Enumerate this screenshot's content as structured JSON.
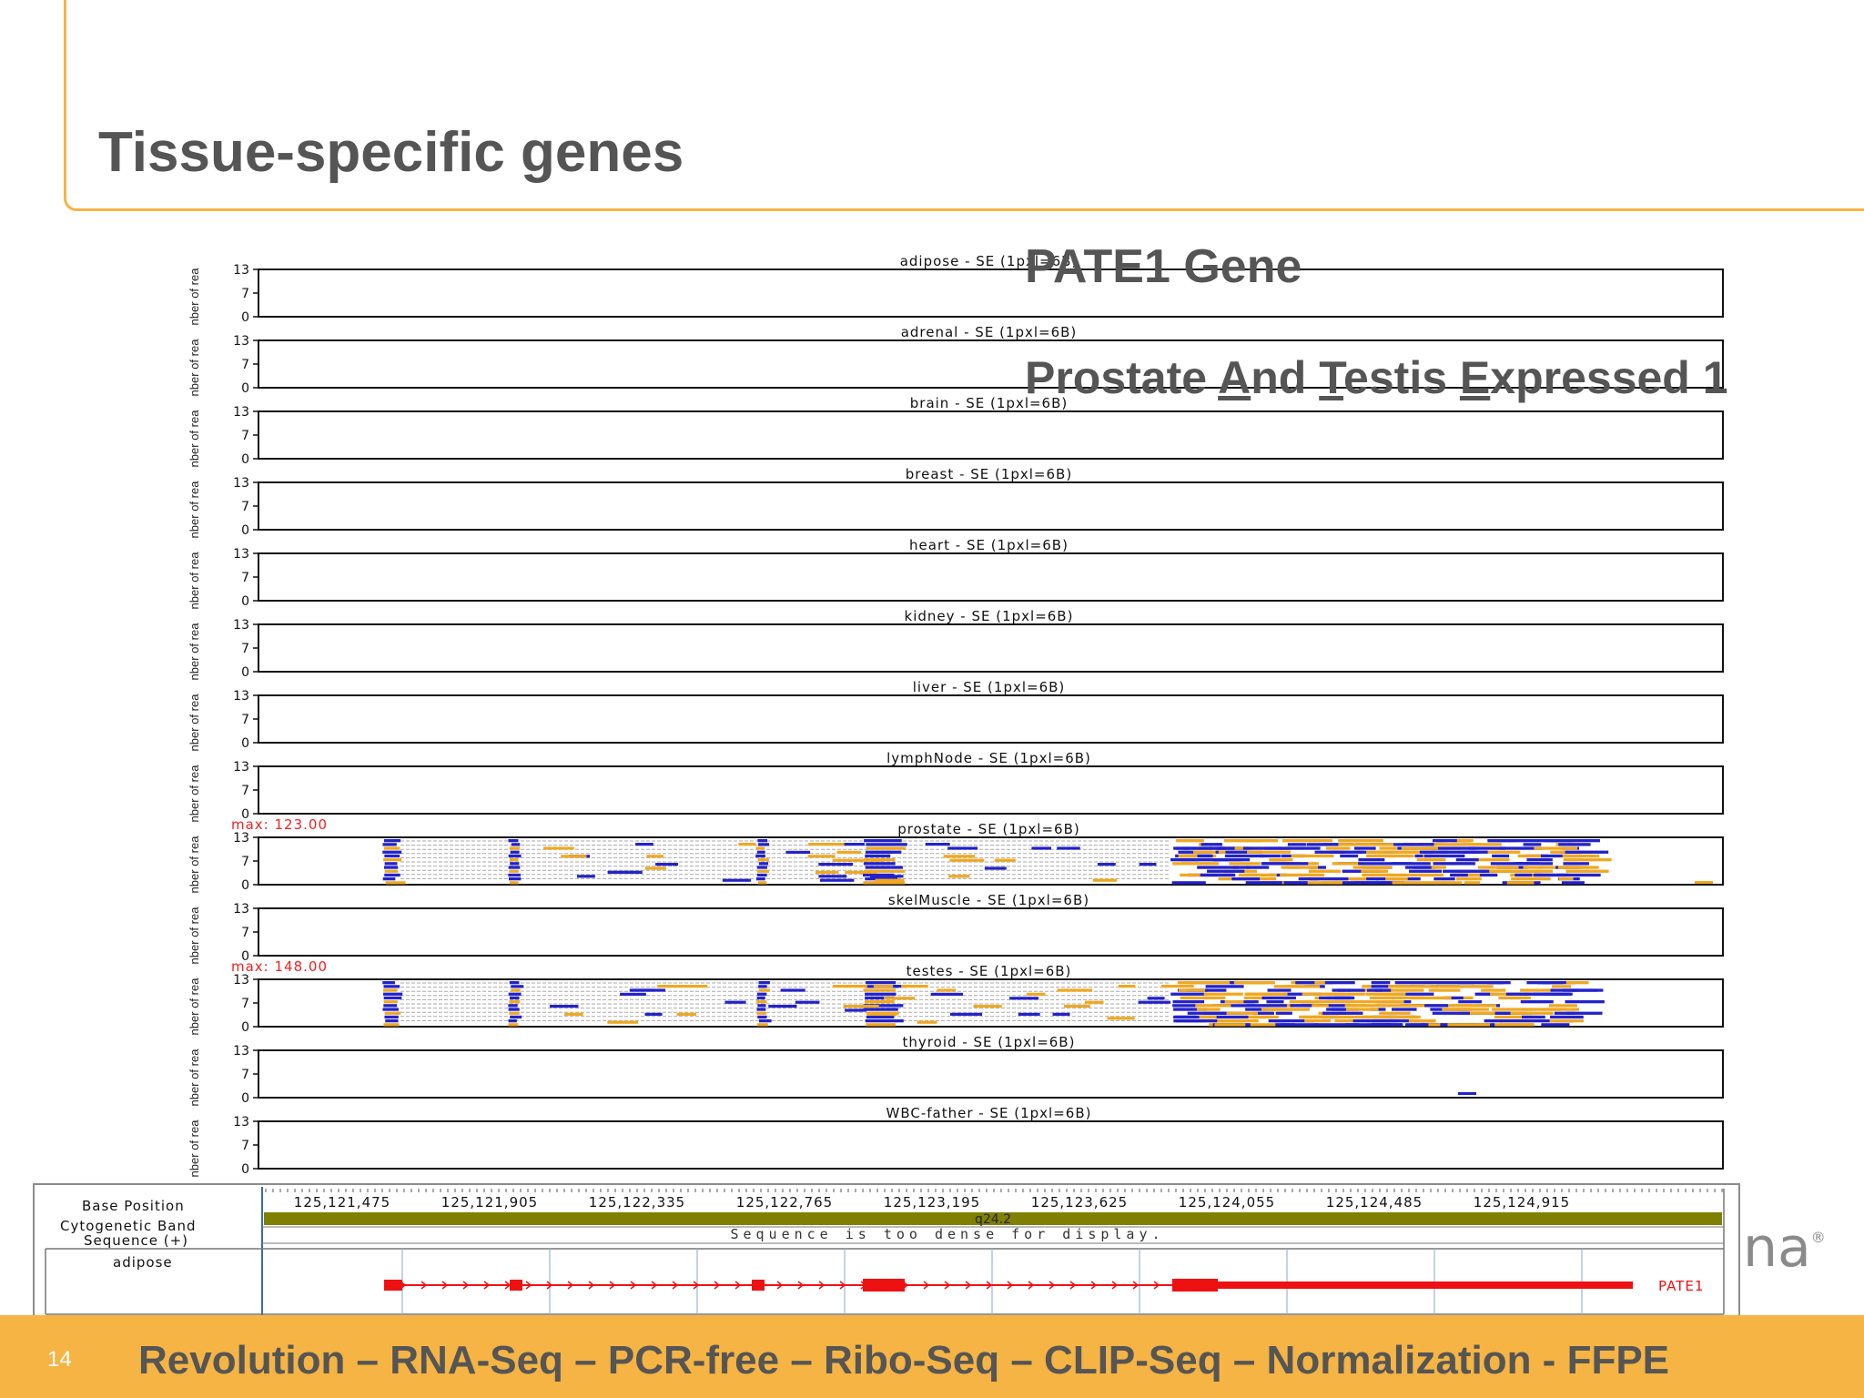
{
  "slide": {
    "title": "Tissue-specific genes",
    "gene_name": "PATE1 Gene",
    "gene_fullname": {
      "p1": "Prostate ",
      "a": "A",
      "p2": "nd ",
      "t": "T",
      "p3": "estis ",
      "e": "E",
      "p4": "xpressed 1"
    },
    "number": "14",
    "footer": "Revolution – RNA-Seq – PCR-free – Ribo-Seq – CLIP-Seq – Normalization - FFPE",
    "logo_fragment": "na",
    "logo_mark": "®"
  },
  "colors": {
    "accent": "#f5b443",
    "forward_reads": "#f0a820",
    "reverse_reads": "#2222cc",
    "gene_model": "#ee1111",
    "cytoband": "#808000",
    "max_label": "#ee2222"
  },
  "browser": {
    "y_axis_label": "nber of rea",
    "y_ticks": [
      "13",
      "7",
      "0"
    ],
    "tracks": [
      {
        "title": "adipose - SE  (1pxl=6B)",
        "max": ""
      },
      {
        "title": "adrenal - SE  (1pxl=6B)",
        "max": ""
      },
      {
        "title": "brain - SE  (1pxl=6B)",
        "max": ""
      },
      {
        "title": "breast - SE  (1pxl=6B)",
        "max": ""
      },
      {
        "title": "heart - SE  (1pxl=6B)",
        "max": ""
      },
      {
        "title": "kidney - SE  (1pxl=6B)",
        "max": ""
      },
      {
        "title": "liver - SE  (1pxl=6B)",
        "max": ""
      },
      {
        "title": "lymphNode - SE  (1pxl=6B)",
        "max": ""
      },
      {
        "title": "prostate - SE  (1pxl=6B)",
        "max": "max: 123.00"
      },
      {
        "title": "skelMuscle - SE  (1pxl=6B)",
        "max": ""
      },
      {
        "title": "testes - SE  (1pxl=6B)",
        "max": "max: 148.00"
      },
      {
        "title": "thyroid - SE  (1pxl=6B)",
        "max": ""
      },
      {
        "title": "WBC-father - SE  (1pxl=6B)",
        "max": ""
      }
    ],
    "base_position_label": "Base Position",
    "cytoband_label": "Cytogenetic Band",
    "sequence_label": "Sequence (+)",
    "annotation_label": "adipose",
    "positions": [
      "125,121,475",
      "125,121,905",
      "125,122,335",
      "125,122,765",
      "125,123,195",
      "125,123,625",
      "125,124,055",
      "125,124,485",
      "125,124,915"
    ],
    "cytoband": "q24.2",
    "sequence_message": "Sequence is too dense for display.",
    "gene_label": "PATE1"
  }
}
